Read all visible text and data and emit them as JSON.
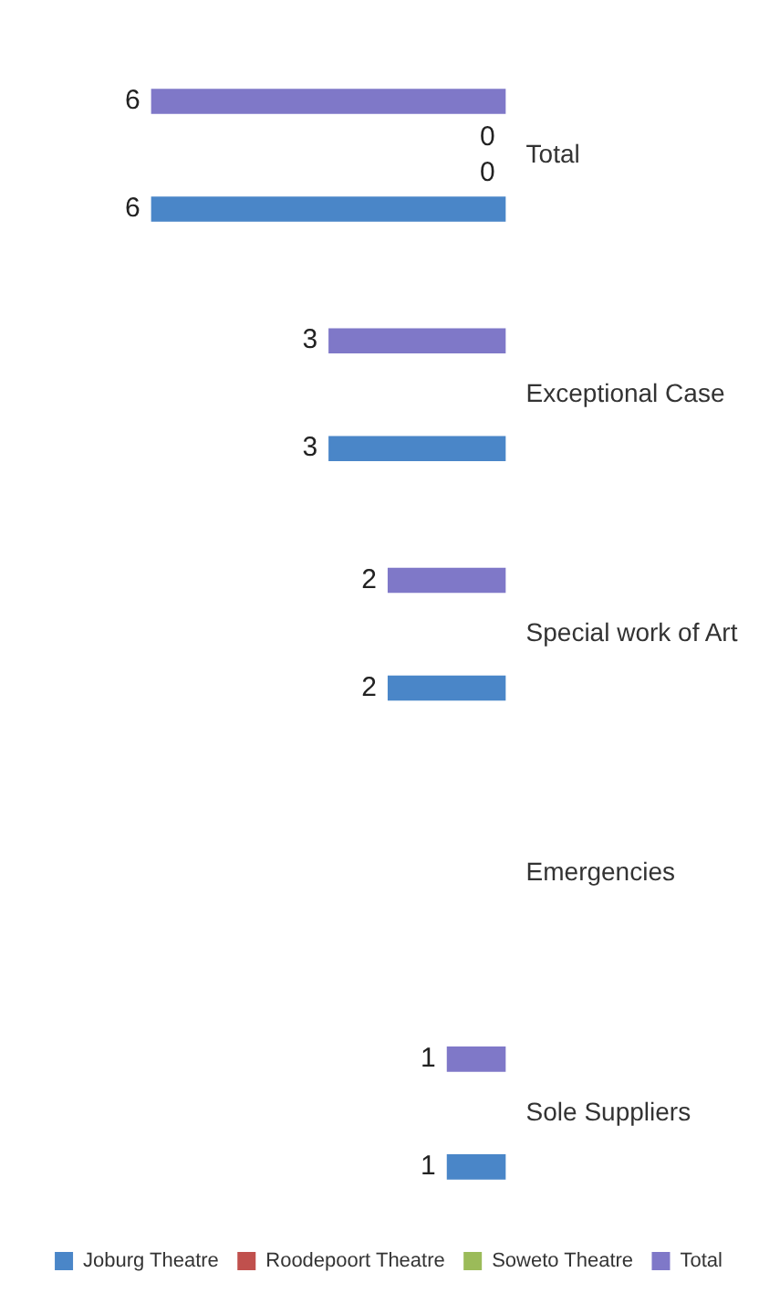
{
  "chart_data": {
    "type": "bar",
    "orientation": "horizontal",
    "categories": [
      "Total",
      "Exceptional Case",
      "Special work of Art",
      "Emergencies",
      "Sole Suppliers"
    ],
    "series": [
      {
        "name": "Joburg Theatre",
        "color": "#4a86c8",
        "values": [
          6,
          3,
          2,
          null,
          1
        ]
      },
      {
        "name": "Roodepoort Theatre",
        "color": "#c0504d",
        "values": [
          0,
          null,
          null,
          null,
          null
        ]
      },
      {
        "name": "Soweto Theatre",
        "color": "#9bbb59",
        "values": [
          0,
          null,
          null,
          null,
          null
        ]
      },
      {
        "name": "Total",
        "color": "#7f78c8",
        "values": [
          6,
          3,
          2,
          null,
          1
        ]
      }
    ],
    "data_labels": true,
    "legend": "bottom"
  }
}
